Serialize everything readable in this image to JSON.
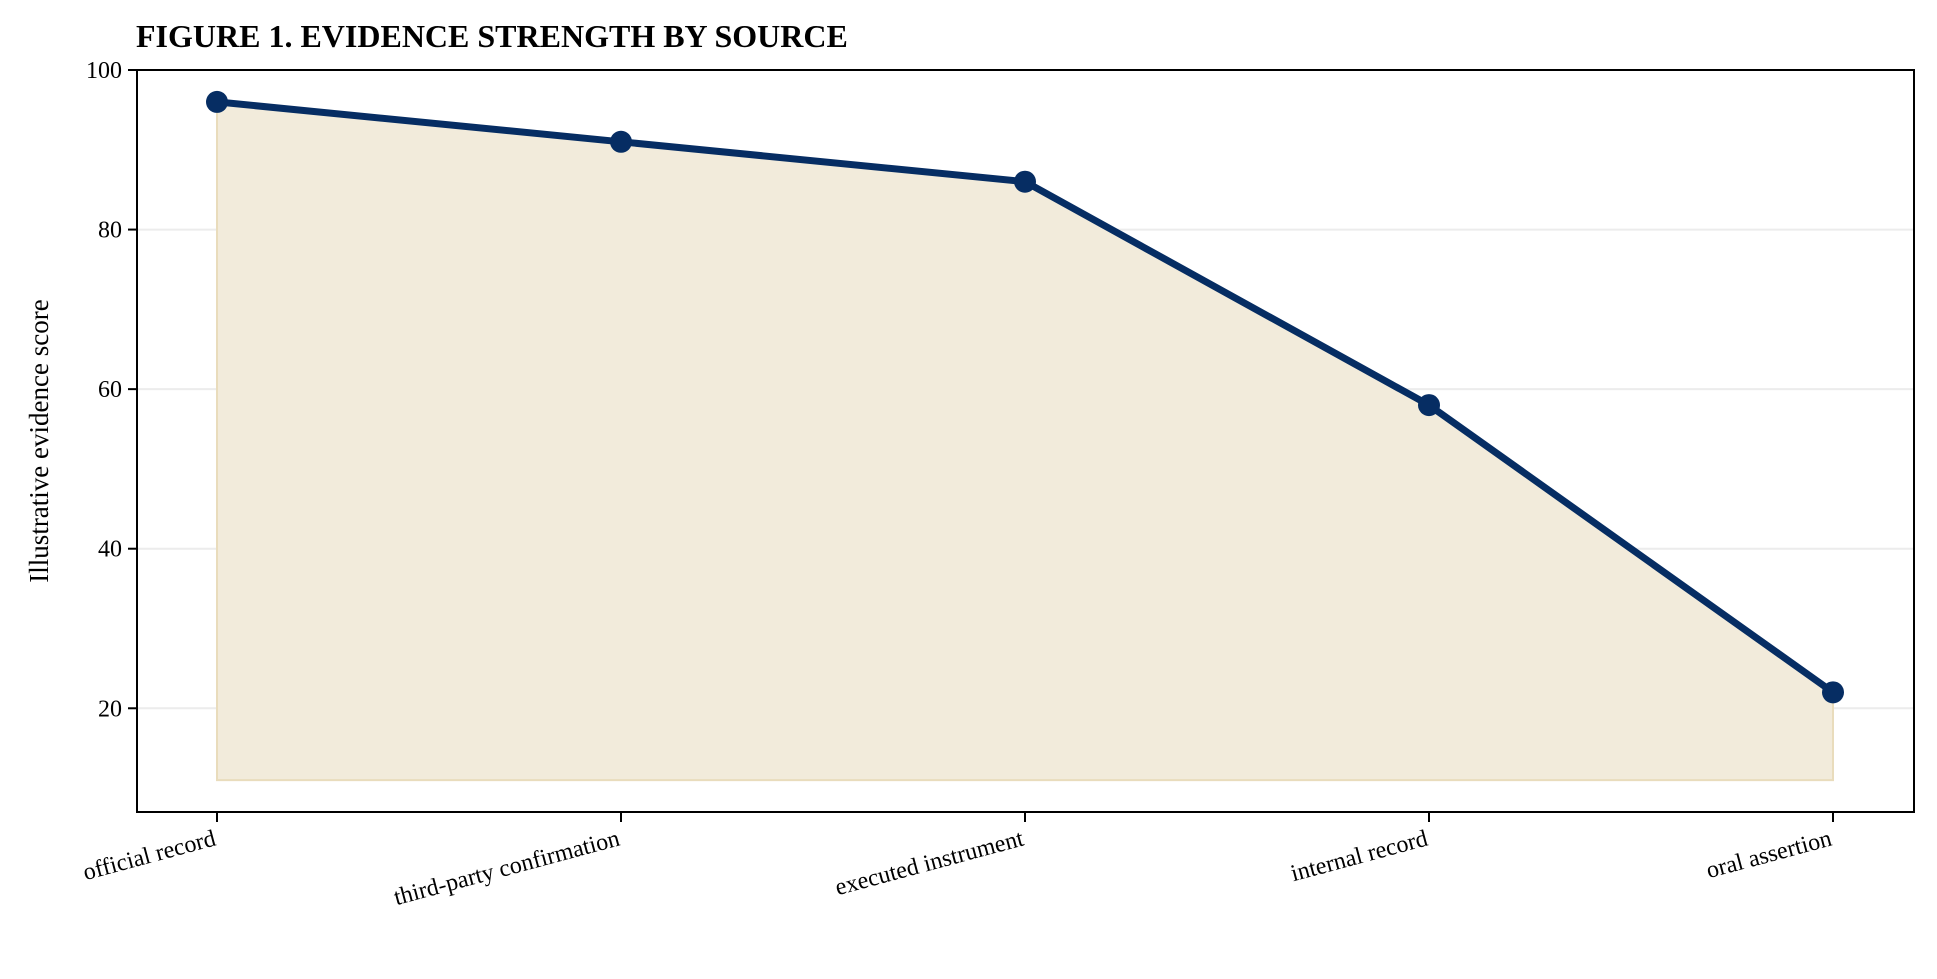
{
  "chart_data": {
    "type": "area",
    "title": "FIGURE 1. EVIDENCE STRENGTH BY SOURCE",
    "xlabel": "",
    "ylabel": "Illustrative evidence score",
    "categories": [
      "official record",
      "third-party confirmation",
      "executed instrument",
      "internal record",
      "oral assertion"
    ],
    "series": [
      {
        "values": [
          96,
          91,
          86,
          58,
          22
        ]
      }
    ],
    "area_baseline": 11,
    "ylim": [
      7,
      100
    ],
    "yticks": [
      20,
      40,
      60,
      80,
      100
    ],
    "grid": "horizontal",
    "legend": "none",
    "colors": {
      "line": "#062d63",
      "fill": "#f2ebdb",
      "fill_edge": "#e9dcbc",
      "grid": "#ececec",
      "axis": "#000000"
    }
  }
}
